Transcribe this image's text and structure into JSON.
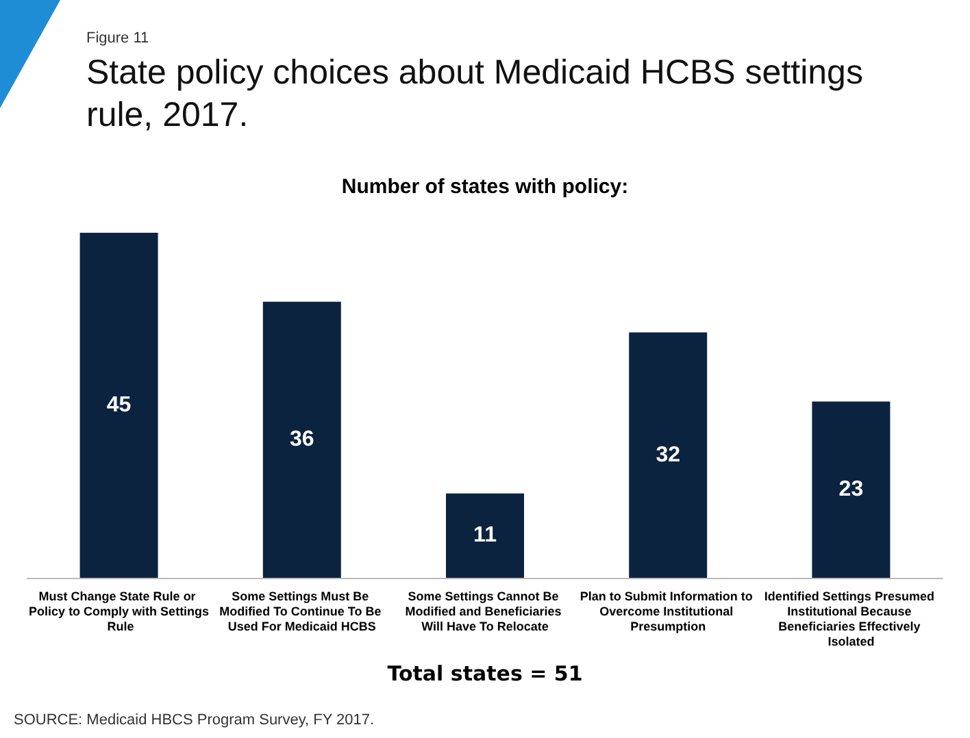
{
  "chart_data": {
    "type": "bar",
    "title": "State policy choices about Medicaid HCBS settings rule, 2017.",
    "subtitle": "Number of states with policy:",
    "categories": [
      "Must Change State Rule or Policy to Comply with Settings Rule",
      "Some Settings Must Be Modified To Continue To Be Used For Medicaid HCBS",
      "Some Settings Cannot Be Modified and Beneficiaries Will Have To Relocate",
      "Plan to Submit Information to Overcome Institutional Presumption",
      "Identified Settings Presumed Institutional Because Beneficiaries Effectively Isolated"
    ],
    "values": [
      45,
      36,
      11,
      32,
      23
    ],
    "color": "#0c2340",
    "data_labels": true,
    "annotations": [
      "Figure 11",
      "Total states = 51",
      "SOURCE:  Medicaid HBCS Program Survey, FY 2017."
    ]
  }
}
